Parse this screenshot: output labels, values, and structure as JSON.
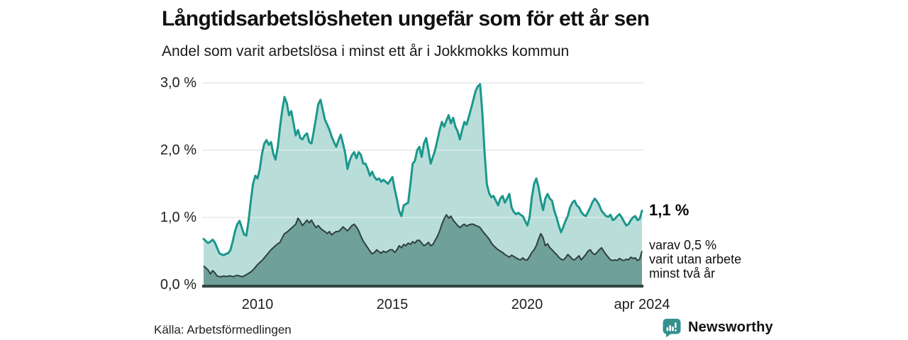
{
  "header": {
    "title": "Långtidsarbetslösheten ungefär som för ett år sen",
    "subtitle": "Andel som varit arbetslösa i minst ett år i Jokkmokks kommun"
  },
  "chart_data": {
    "type": "area",
    "title": "Långtidsarbetslösheten ungefär som för ett år sen",
    "subtitle": "Andel som varit arbetslösa i minst ett år i Jokkmokks kommun",
    "unit": "%",
    "frequency": "monthly",
    "x_start": "2008-01",
    "x_end": "2024-04",
    "ylim": [
      0,
      3.0
    ],
    "grid": "horizontal",
    "x_ticks": [
      {
        "value": 2010,
        "label": "2010"
      },
      {
        "value": 2015,
        "label": "2015"
      },
      {
        "value": 2020,
        "label": "2020"
      },
      {
        "value": 2024.25,
        "label": "apr 2024"
      }
    ],
    "y_ticks": [
      {
        "value": 3.0,
        "label": "3,0 %"
      },
      {
        "value": 2.0,
        "label": "2,0 %"
      },
      {
        "value": 1.0,
        "label": "1,0 %"
      },
      {
        "value": 0.0,
        "label": "0,0 %"
      }
    ],
    "series": [
      {
        "name": "Arbetslösa minst ett år",
        "line_color": "#1b978c",
        "fill_color": "#b9ded9",
        "latest_label": "1,1 %",
        "values": [
          0.68,
          0.65,
          0.62,
          0.64,
          0.67,
          0.63,
          0.55,
          0.47,
          0.45,
          0.44,
          0.46,
          0.47,
          0.52,
          0.65,
          0.8,
          0.9,
          0.95,
          0.85,
          0.75,
          0.73,
          0.95,
          1.25,
          1.5,
          1.62,
          1.58,
          1.72,
          1.95,
          2.1,
          2.15,
          2.08,
          2.12,
          1.95,
          1.86,
          2.05,
          2.35,
          2.6,
          2.79,
          2.7,
          2.52,
          2.58,
          2.4,
          2.22,
          2.3,
          2.18,
          2.16,
          2.22,
          2.25,
          2.12,
          2.1,
          2.28,
          2.48,
          2.68,
          2.75,
          2.6,
          2.45,
          2.38,
          2.3,
          2.2,
          2.12,
          2.05,
          2.15,
          2.23,
          2.1,
          1.95,
          1.72,
          1.85,
          1.93,
          1.97,
          1.88,
          1.97,
          1.93,
          1.8,
          1.8,
          1.72,
          1.62,
          1.68,
          1.6,
          1.56,
          1.58,
          1.53,
          1.56,
          1.53,
          1.5,
          1.55,
          1.6,
          1.42,
          1.27,
          1.1,
          1.02,
          1.18,
          1.2,
          1.22,
          1.5,
          1.8,
          1.84,
          2.0,
          2.05,
          1.9,
          2.1,
          2.18,
          2.0,
          1.8,
          1.9,
          2.0,
          2.15,
          2.3,
          2.42,
          2.35,
          2.44,
          2.52,
          2.4,
          2.48,
          2.35,
          2.28,
          2.16,
          2.3,
          2.42,
          2.38,
          2.5,
          2.62,
          2.75,
          2.88,
          2.95,
          2.98,
          2.55,
          1.95,
          1.5,
          1.36,
          1.3,
          1.32,
          1.25,
          1.18,
          1.28,
          1.32,
          1.22,
          1.28,
          1.35,
          1.15,
          1.08,
          1.05,
          1.07,
          1.04,
          1.02,
          0.95,
          0.88,
          1.0,
          1.3,
          1.5,
          1.58,
          1.45,
          1.25,
          1.11,
          1.28,
          1.35,
          1.28,
          1.25,
          1.1,
          1.0,
          0.88,
          0.78,
          0.86,
          0.95,
          1.02,
          1.15,
          1.22,
          1.25,
          1.18,
          1.15,
          1.08,
          1.04,
          1.02,
          1.08,
          1.15,
          1.23,
          1.28,
          1.24,
          1.18,
          1.1,
          1.06,
          1.02,
          1.01,
          1.04,
          0.96,
          0.98,
          1.02,
          1.05,
          1.0,
          0.94,
          0.88,
          0.9,
          0.96,
          1.0,
          1.02,
          0.96,
          0.98,
          1.1
        ]
      },
      {
        "name": "Arbetslösa minst två år",
        "line_color": "#2f403d",
        "fill_color": "#6fa09a",
        "latest_label": "varav 0,5 %",
        "values": [
          0.28,
          0.25,
          0.22,
          0.16,
          0.21,
          0.18,
          0.13,
          0.12,
          0.12,
          0.13,
          0.12,
          0.13,
          0.13,
          0.12,
          0.13,
          0.14,
          0.13,
          0.12,
          0.13,
          0.15,
          0.17,
          0.19,
          0.22,
          0.26,
          0.3,
          0.33,
          0.36,
          0.4,
          0.44,
          0.48,
          0.52,
          0.55,
          0.58,
          0.61,
          0.63,
          0.7,
          0.76,
          0.78,
          0.81,
          0.84,
          0.87,
          0.9,
          0.99,
          0.94,
          0.88,
          0.92,
          0.96,
          0.92,
          0.96,
          0.9,
          0.85,
          0.88,
          0.84,
          0.81,
          0.79,
          0.76,
          0.79,
          0.74,
          0.77,
          0.79,
          0.79,
          0.82,
          0.86,
          0.83,
          0.8,
          0.84,
          0.88,
          0.9,
          0.86,
          0.8,
          0.72,
          0.65,
          0.6,
          0.55,
          0.5,
          0.46,
          0.48,
          0.52,
          0.49,
          0.47,
          0.5,
          0.48,
          0.5,
          0.52,
          0.52,
          0.48,
          0.52,
          0.58,
          0.55,
          0.6,
          0.58,
          0.62,
          0.6,
          0.64,
          0.62,
          0.66,
          0.66,
          0.62,
          0.58,
          0.6,
          0.63,
          0.58,
          0.6,
          0.66,
          0.72,
          0.8,
          0.9,
          0.98,
          1.04,
          0.99,
          1.02,
          0.96,
          0.92,
          0.88,
          0.85,
          0.88,
          0.9,
          0.87,
          0.89,
          0.9,
          0.9,
          0.88,
          0.87,
          0.85,
          0.8,
          0.76,
          0.72,
          0.68,
          0.62,
          0.58,
          0.55,
          0.52,
          0.5,
          0.48,
          0.45,
          0.43,
          0.41,
          0.44,
          0.42,
          0.4,
          0.38,
          0.37,
          0.4,
          0.37,
          0.37,
          0.42,
          0.48,
          0.52,
          0.58,
          0.68,
          0.76,
          0.7,
          0.58,
          0.61,
          0.55,
          0.52,
          0.48,
          0.45,
          0.41,
          0.38,
          0.37,
          0.4,
          0.45,
          0.42,
          0.38,
          0.37,
          0.4,
          0.43,
          0.37,
          0.41,
          0.45,
          0.5,
          0.52,
          0.47,
          0.45,
          0.48,
          0.52,
          0.55,
          0.5,
          0.45,
          0.41,
          0.37,
          0.36,
          0.37,
          0.36,
          0.39,
          0.37,
          0.36,
          0.38,
          0.37,
          0.41,
          0.39,
          0.4,
          0.36,
          0.38,
          0.5
        ]
      }
    ],
    "annotations": [
      {
        "text": "1,1 %",
        "target": "latest total"
      },
      {
        "text": "varav 0,5 % varit utan arbete minst två år",
        "target": "latest two-year share"
      }
    ],
    "colors": {
      "gridline": "#d8dcdb",
      "baseline": "#34443f",
      "axis_text": "#1f1f1f"
    }
  },
  "annotation_labels": {
    "latest_total": "1,1 %",
    "sub_lines": [
      "varav 0,5 %",
      "varit utan arbete",
      "minst två år"
    ]
  },
  "source": {
    "label": "Källa: Arbetsförmedlingen"
  },
  "branding": {
    "name": "Newsworthy",
    "color": "#35908c"
  }
}
